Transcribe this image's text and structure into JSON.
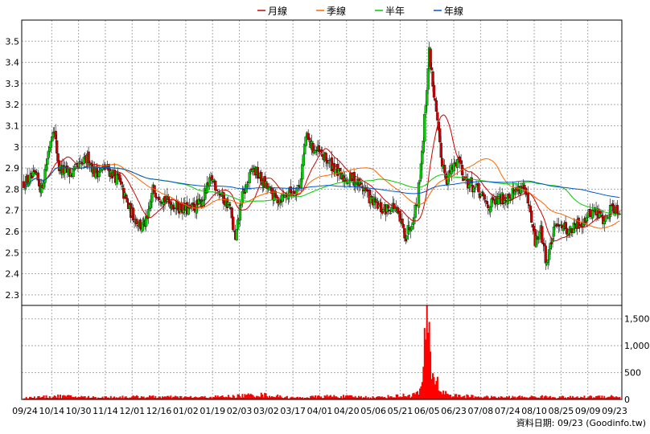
{
  "chart_data": {
    "type": "candlestick",
    "legend": [
      {
        "name": "月線",
        "color": "#cc0000"
      },
      {
        "name": "季線",
        "color": "#ff6600"
      },
      {
        "name": "半年",
        "color": "#00cc00"
      },
      {
        "name": "年線",
        "color": "#0055cc"
      }
    ],
    "legend_placement": "top-center",
    "grid": true,
    "price_axis": {
      "range": [
        2.25,
        3.6
      ],
      "ticks": [
        "2.3",
        "2.4",
        "2.5",
        "2.6",
        "2.7",
        "2.8",
        "2.9",
        "3",
        "3.1",
        "3.2",
        "3.3",
        "3.4",
        "3.5"
      ],
      "position": "left"
    },
    "volume_axis": {
      "range": [
        0,
        1750
      ],
      "ticks": [
        "0",
        "500",
        "1,000",
        "1,500"
      ],
      "position": "right"
    },
    "x_ticks": [
      "09/24",
      "10/14",
      "10/30",
      "11/14",
      "12/01",
      "12/16",
      "01/02",
      "01/19",
      "02/03",
      "03/02",
      "03/17",
      "04/01",
      "04/20",
      "05/06",
      "05/21",
      "06/05",
      "06/23",
      "07/08",
      "07/24",
      "08/10",
      "08/25",
      "09/09",
      "09/23"
    ],
    "up_color": "#00cc00",
    "down_color": "#cc0000",
    "volume_color": "#ff0000",
    "footer": "資料日期: 09/23 (Goodinfo.tw)",
    "price_anchors": [
      [
        0,
        2.83
      ],
      [
        10,
        2.86
      ],
      [
        15,
        2.8
      ],
      [
        20,
        2.95
      ],
      [
        25,
        3.1
      ],
      [
        30,
        2.9
      ],
      [
        40,
        2.87
      ],
      [
        50,
        2.92
      ],
      [
        55,
        2.95
      ],
      [
        60,
        2.88
      ],
      [
        70,
        2.9
      ],
      [
        80,
        2.85
      ],
      [
        90,
        2.7
      ],
      [
        100,
        2.62
      ],
      [
        105,
        2.65
      ],
      [
        110,
        2.8
      ],
      [
        120,
        2.75
      ],
      [
        130,
        2.72
      ],
      [
        140,
        2.7
      ],
      [
        150,
        2.73
      ],
      [
        160,
        2.85
      ],
      [
        170,
        2.75
      ],
      [
        175,
        2.72
      ],
      [
        180,
        2.55
      ],
      [
        185,
        2.75
      ],
      [
        195,
        2.9
      ],
      [
        205,
        2.82
      ],
      [
        215,
        2.75
      ],
      [
        225,
        2.78
      ],
      [
        235,
        2.82
      ],
      [
        240,
        3.05
      ],
      [
        245,
        3.0
      ],
      [
        255,
        2.95
      ],
      [
        265,
        2.9
      ],
      [
        270,
        2.85
      ],
      [
        280,
        2.85
      ],
      [
        290,
        2.8
      ],
      [
        295,
        2.75
      ],
      [
        305,
        2.7
      ],
      [
        315,
        2.72
      ],
      [
        320,
        2.65
      ],
      [
        325,
        2.58
      ],
      [
        330,
        2.65
      ],
      [
        335,
        2.75
      ],
      [
        340,
        3.05
      ],
      [
        345,
        3.45
      ],
      [
        350,
        3.2
      ],
      [
        355,
        2.95
      ],
      [
        360,
        2.85
      ],
      [
        365,
        2.9
      ],
      [
        370,
        2.95
      ],
      [
        375,
        2.85
      ],
      [
        380,
        2.82
      ],
      [
        385,
        2.8
      ],
      [
        395,
        2.72
      ],
      [
        405,
        2.75
      ],
      [
        415,
        2.78
      ],
      [
        420,
        2.8
      ],
      [
        425,
        2.82
      ],
      [
        430,
        2.7
      ],
      [
        435,
        2.55
      ],
      [
        440,
        2.6
      ],
      [
        445,
        2.45
      ],
      [
        450,
        2.58
      ],
      [
        455,
        2.65
      ],
      [
        460,
        2.62
      ],
      [
        465,
        2.6
      ],
      [
        475,
        2.65
      ],
      [
        485,
        2.7
      ],
      [
        495,
        2.65
      ],
      [
        500,
        2.72
      ],
      [
        507,
        2.7
      ]
    ],
    "volume_anchors": [
      [
        0,
        30
      ],
      [
        30,
        60
      ],
      [
        60,
        40
      ],
      [
        100,
        50
      ],
      [
        150,
        40
      ],
      [
        180,
        60
      ],
      [
        200,
        90
      ],
      [
        230,
        30
      ],
      [
        260,
        60
      ],
      [
        300,
        40
      ],
      [
        330,
        80
      ],
      [
        336,
        120
      ],
      [
        340,
        400
      ],
      [
        343,
        1700
      ],
      [
        346,
        700
      ],
      [
        350,
        400
      ],
      [
        355,
        150
      ],
      [
        365,
        70
      ],
      [
        400,
        40
      ],
      [
        440,
        50
      ],
      [
        470,
        40
      ],
      [
        500,
        60
      ],
      [
        507,
        50
      ]
    ]
  }
}
